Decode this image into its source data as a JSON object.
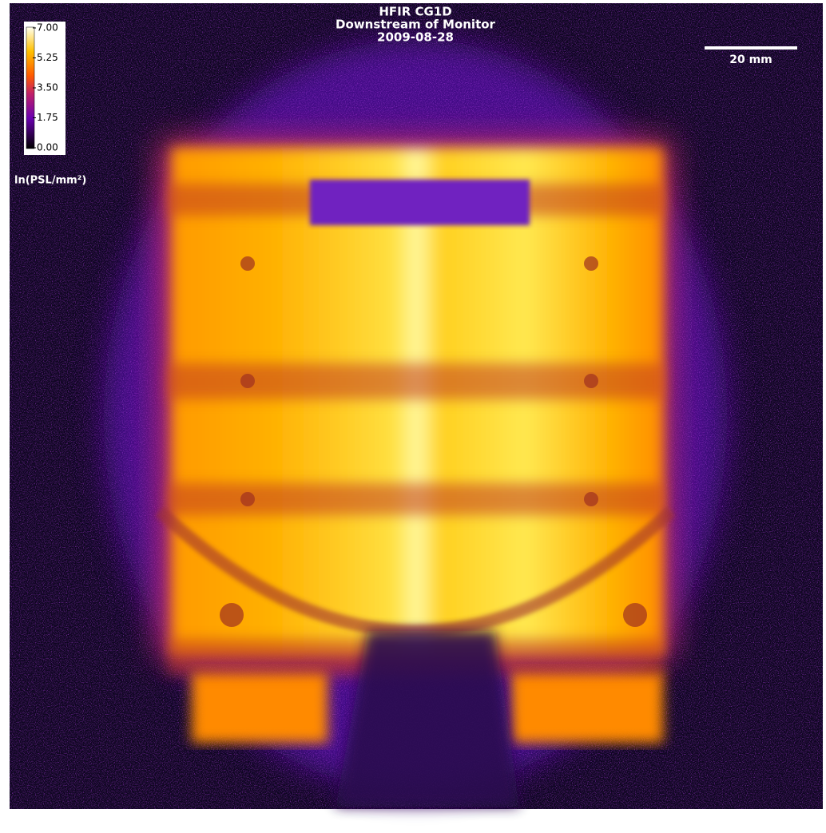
{
  "title": [
    "HFIR CG1D",
    "Downstream of Monitor",
    "2009-08-28"
  ],
  "colorbar": {
    "label": "ln(PSL/mm²)",
    "lim": [
      0,
      7
    ],
    "ticks": [
      {
        "value": 0,
        "label": "0.00"
      },
      {
        "value": 1.75,
        "label": "1.75"
      },
      {
        "value": 3.5,
        "label": "3.50"
      },
      {
        "value": 5.25,
        "label": "5.25"
      },
      {
        "value": 7,
        "label": "7.00"
      }
    ]
  },
  "scale_bar": {
    "label": "20 mm"
  }
}
